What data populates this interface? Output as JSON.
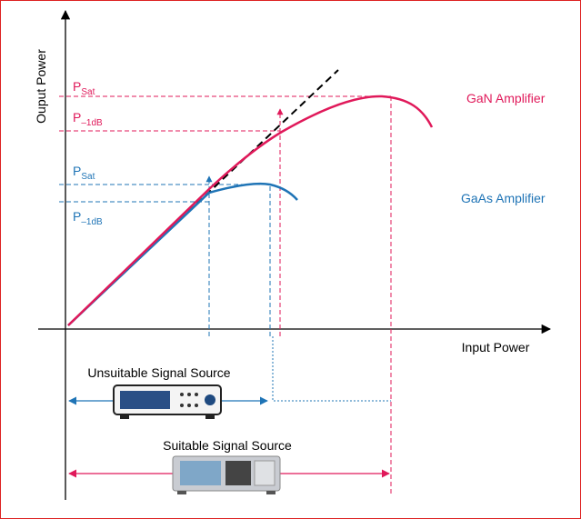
{
  "axes": {
    "y_label": "Ouput Power",
    "x_label": "Input Power"
  },
  "levels": {
    "gan_sat": {
      "main": "P",
      "sub": "Sat"
    },
    "gan_1db": {
      "main": "P",
      "sub": "–1dB"
    },
    "gaas_sat": {
      "main": "P",
      "sub": "Sat"
    },
    "gaas_1db": {
      "main": "P",
      "sub": "–1dB"
    }
  },
  "curves": {
    "gan": "GaN Amplifier",
    "gaas": "GaAs Amplifier"
  },
  "sources": {
    "unsuitable": "Unsuitable Signal Source",
    "suitable": "Suitable Signal Source"
  }
}
